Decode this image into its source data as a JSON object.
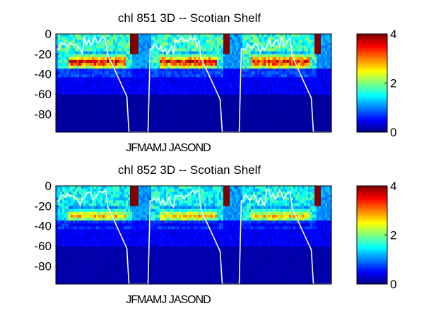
{
  "chart_data": [
    {
      "type": "heatmap",
      "title": "chl  851 3D   -- Scotian Shelf",
      "xlabel": "JFMAMJ JASOND",
      "ylabel": "",
      "yticks": [
        "0",
        "-20",
        "-40",
        "-60",
        "-80"
      ],
      "ylim": [
        -98,
        0
      ],
      "colorbar": {
        "ticks": [
          "0",
          "2",
          "4"
        ],
        "clim": [
          0,
          4
        ],
        "colormap": "jet"
      },
      "years": 3,
      "description_values": {
        "surface_chl_typical": 1.8,
        "subsurface_max_depth": -28,
        "subsurface_max_value": 3.7,
        "deep_value": 0.1,
        "mixed_layer_depth_max": -98
      }
    },
    {
      "type": "heatmap",
      "title": "chl  852 3D   -- Scotian Shelf",
      "xlabel": "JFMAMJ JASOND",
      "ylabel": "",
      "yticks": [
        "0",
        "-20",
        "-40",
        "-60",
        "-80"
      ],
      "ylim": [
        -98,
        0
      ],
      "colorbar": {
        "ticks": [
          "0",
          "2",
          "4"
        ],
        "clim": [
          0,
          4
        ],
        "colormap": "jet"
      },
      "years": 3,
      "description_values": {
        "surface_chl_typical": 1.6,
        "subsurface_max_depth": -30,
        "subsurface_max_value": 2.8,
        "deep_value": 0.15,
        "mixed_layer_depth_max": -98
      }
    }
  ]
}
